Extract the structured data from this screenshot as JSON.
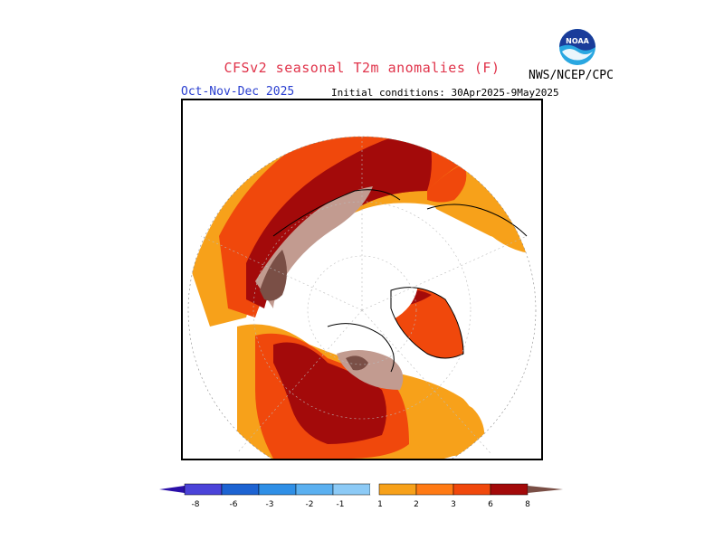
{
  "title": "CFSv2 seasonal T2m anomalies (F)",
  "agency": "NWS/NCEP/CPC",
  "season": "Oct-Nov-Dec 2025",
  "initial_conditions": "Initial conditions: 30Apr2025-9May2025",
  "logo_text": "NOAA",
  "colors": {
    "title": "#e0334a",
    "season": "#2a3fd0",
    "c_m8": "#2a0fa8",
    "c_m6": "#4b43d9",
    "c_m4": "#1d63d2",
    "c_m3": "#2f8fe6",
    "c_m2": "#5bb0f0",
    "c_m1": "#8ccaf6",
    "c_1": "#f7a11a",
    "c_2": "#ff7a14",
    "c_3": "#f0480c",
    "c_6": "#a30a0a",
    "c_8": "#c29b90",
    "c_max": "#7a4f46"
  },
  "colorbar": {
    "ticks": [
      "-8",
      "-6",
      "-3",
      "-2",
      "-1",
      "1",
      "2",
      "3",
      "6",
      "8"
    ]
  }
}
